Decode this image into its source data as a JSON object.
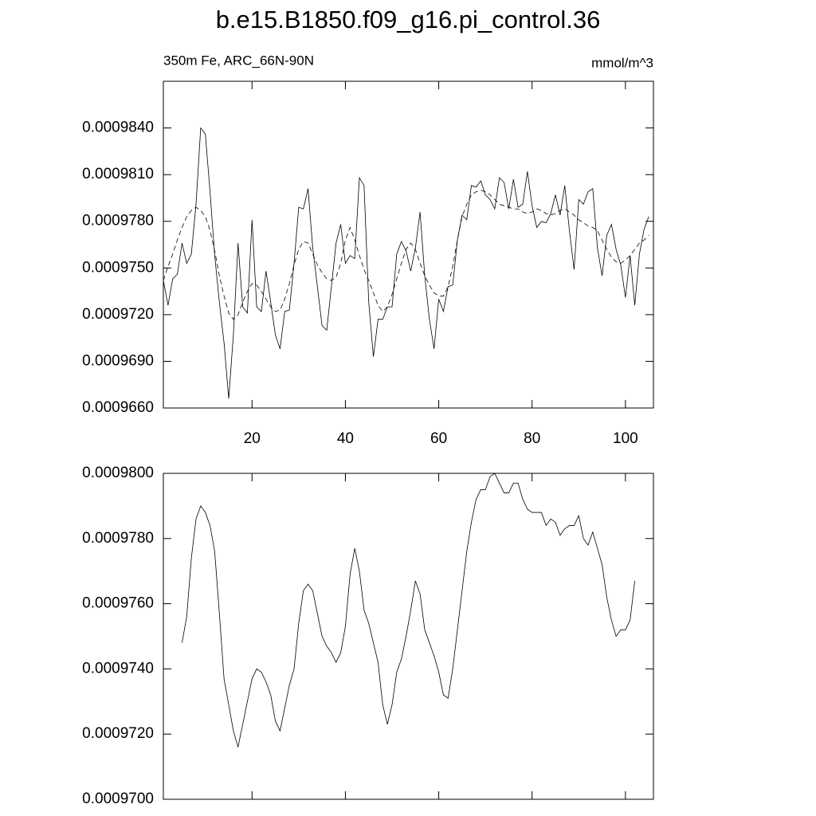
{
  "chart_data": [
    {
      "type": "line",
      "title": "b.e15.B1850.f09_g16.pi_control.36",
      "subtitle_left": "350m Fe, ARC_66N-90N",
      "subtitle_right": "mmol/m^3",
      "x": [
        1,
        2,
        3,
        4,
        5,
        6,
        7,
        8,
        9,
        10,
        11,
        12,
        13,
        14,
        15,
        16,
        17,
        18,
        19,
        20,
        21,
        22,
        23,
        24,
        25,
        26,
        27,
        28,
        29,
        30,
        31,
        32,
        33,
        34,
        35,
        36,
        37,
        38,
        39,
        40,
        41,
        42,
        43,
        44,
        45,
        46,
        47,
        48,
        49,
        50,
        51,
        52,
        53,
        54,
        55,
        56,
        57,
        58,
        59,
        60,
        61,
        62,
        63,
        64,
        65,
        66,
        67,
        68,
        69,
        70,
        71,
        72,
        73,
        74,
        75,
        76,
        77,
        78,
        79,
        80,
        81,
        82,
        83,
        84,
        85,
        86,
        87,
        88,
        89,
        90,
        91,
        92,
        93,
        94,
        95,
        96,
        97,
        98,
        99,
        100,
        101,
        102,
        103,
        104,
        105
      ],
      "series": [
        {
          "color": "#000000",
          "dashed": false,
          "values": [
            0.0009742,
            0.0009726,
            0.0009743,
            0.0009746,
            0.0009766,
            0.0009753,
            0.0009759,
            0.0009791,
            0.000984,
            0.0009836,
            0.0009799,
            0.0009758,
            0.0009728,
            0.0009702,
            0.0009666,
            0.0009707,
            0.0009766,
            0.0009725,
            0.0009721,
            0.0009781,
            0.0009725,
            0.0009722,
            0.0009748,
            0.0009728,
            0.0009707,
            0.0009698,
            0.0009722,
            0.0009723,
            0.0009753,
            0.0009789,
            0.0009788,
            0.0009801,
            0.0009763,
            0.0009738,
            0.0009713,
            0.000971,
            0.0009738,
            0.0009766,
            0.0009778,
            0.0009753,
            0.0009758,
            0.0009756,
            0.0009808,
            0.0009803,
            0.0009728,
            0.0009693,
            0.0009717,
            0.0009717,
            0.0009725,
            0.0009725,
            0.0009759,
            0.0009767,
            0.0009761,
            0.0009748,
            0.0009763,
            0.0009786,
            0.0009745,
            0.0009717,
            0.0009698,
            0.000973,
            0.0009722,
            0.0009738,
            0.0009739,
            0.0009768,
            0.0009784,
            0.0009781,
            0.0009803,
            0.0009802,
            0.0009806,
            0.0009797,
            0.0009794,
            0.0009788,
            0.0009808,
            0.0009805,
            0.0009788,
            0.0009807,
            0.0009789,
            0.0009791,
            0.0009812,
            0.000979,
            0.0009776,
            0.000978,
            0.0009779,
            0.0009785,
            0.0009797,
            0.0009784,
            0.0009803,
            0.0009774,
            0.0009749,
            0.0009794,
            0.0009791,
            0.0009799,
            0.0009801,
            0.0009763,
            0.0009745,
            0.0009771,
            0.0009778,
            0.0009762,
            0.0009752,
            0.0009731,
            0.0009758,
            0.0009726,
            0.0009759,
            0.0009775,
            0.0009783
          ]
        },
        {
          "color": "#000000",
          "dashed": true,
          "values": [
            0.0009742,
            0.0009751,
            0.0009759,
            0.0009768,
            0.0009776,
            0.0009783,
            0.0009787,
            0.0009789,
            0.0009787,
            0.0009783,
            0.0009774,
            0.0009761,
            0.0009745,
            0.0009732,
            0.0009721,
            0.0009717,
            0.000972,
            0.0009728,
            0.0009735,
            0.000974,
            0.0009739,
            0.0009735,
            0.000973,
            0.0009725,
            0.0009722,
            0.0009723,
            0.000973,
            0.000974,
            0.0009752,
            0.0009762,
            0.0009767,
            0.0009766,
            0.0009759,
            0.0009752,
            0.0009747,
            0.0009743,
            0.0009742,
            0.0009744,
            0.0009753,
            0.0009768,
            0.0009776,
            0.0009768,
            0.0009758,
            0.0009749,
            0.0009742,
            0.0009734,
            0.0009726,
            0.0009722,
            0.0009725,
            0.0009733,
            0.0009743,
            0.0009753,
            0.0009762,
            0.0009766,
            0.0009762,
            0.0009753,
            0.0009745,
            0.0009739,
            0.0009734,
            0.0009732,
            0.0009732,
            0.0009738,
            0.0009751,
            0.0009768,
            0.0009783,
            0.0009791,
            0.0009797,
            0.0009799,
            0.00098,
            0.0009799,
            0.0009797,
            0.0009794,
            0.0009791,
            0.000979,
            0.0009789,
            0.0009788,
            0.0009788,
            0.0009786,
            0.0009785,
            0.0009786,
            0.0009788,
            0.0009787,
            0.0009785,
            0.0009784,
            0.0009785,
            0.0009787,
            0.0009788,
            0.0009786,
            0.0009784,
            0.0009781,
            0.0009779,
            0.0009777,
            0.0009776,
            0.0009774,
            0.0009768,
            0.0009762,
            0.0009757,
            0.0009754,
            0.0009753,
            0.0009755,
            0.0009758,
            0.0009762,
            0.0009766,
            0.0009768,
            0.0009771
          ]
        }
      ],
      "xlim": [
        1,
        106
      ],
      "xticks": [
        20,
        40,
        60,
        80,
        100
      ],
      "xtick_labels": true,
      "ylim": [
        0.000966,
        0.000987
      ],
      "yticks": [
        {
          "value": 0.000966,
          "label": "0.0009660"
        },
        {
          "value": 0.000969,
          "label": "0.0009690"
        },
        {
          "value": 0.000972,
          "label": "0.0009720"
        },
        {
          "value": 0.000975,
          "label": "0.0009750"
        },
        {
          "value": 0.000978,
          "label": "0.0009780"
        },
        {
          "value": 0.000981,
          "label": "0.0009810"
        },
        {
          "value": 0.000984,
          "label": "0.0009840"
        }
      ]
    },
    {
      "type": "line",
      "x": [
        5,
        6,
        7,
        8,
        9,
        10,
        11,
        12,
        13,
        14,
        15,
        16,
        17,
        18,
        19,
        20,
        21,
        22,
        23,
        24,
        25,
        26,
        27,
        28,
        29,
        30,
        31,
        32,
        33,
        34,
        35,
        36,
        37,
        38,
        39,
        40,
        41,
        42,
        43,
        44,
        45,
        46,
        47,
        48,
        49,
        50,
        51,
        52,
        53,
        54,
        55,
        56,
        57,
        58,
        59,
        60,
        61,
        62,
        63,
        64,
        65,
        66,
        67,
        68,
        69,
        70,
        71,
        72,
        73,
        74,
        75,
        76,
        77,
        78,
        79,
        80,
        81,
        82,
        83,
        84,
        85,
        86,
        87,
        88,
        89,
        90,
        91,
        92,
        93,
        94,
        95,
        96,
        97,
        98,
        99,
        100,
        101,
        102
      ],
      "series": [
        {
          "color": "#000000",
          "dashed": false,
          "values": [
            0.0009748,
            0.0009756,
            0.0009774,
            0.0009786,
            0.000979,
            0.0009788,
            0.0009784,
            0.0009776,
            0.0009757,
            0.0009737,
            0.0009729,
            0.0009721,
            0.0009716,
            0.0009723,
            0.000973,
            0.0009737,
            0.000974,
            0.0009739,
            0.0009736,
            0.0009732,
            0.0009724,
            0.0009721,
            0.0009728,
            0.0009735,
            0.000974,
            0.0009754,
            0.0009764,
            0.0009766,
            0.0009764,
            0.0009757,
            0.000975,
            0.0009747,
            0.0009745,
            0.0009742,
            0.0009745,
            0.0009753,
            0.0009769,
            0.0009777,
            0.000977,
            0.0009758,
            0.0009754,
            0.0009748,
            0.0009742,
            0.0009729,
            0.0009723,
            0.0009729,
            0.0009739,
            0.0009743,
            0.000975,
            0.0009758,
            0.0009767,
            0.0009763,
            0.0009752,
            0.0009748,
            0.0009744,
            0.0009739,
            0.0009732,
            0.0009731,
            0.000974,
            0.0009752,
            0.0009764,
            0.0009776,
            0.0009785,
            0.0009792,
            0.0009795,
            0.0009795,
            0.0009799,
            0.00098,
            0.0009797,
            0.0009794,
            0.0009794,
            0.0009797,
            0.0009797,
            0.0009792,
            0.0009789,
            0.0009788,
            0.0009788,
            0.0009788,
            0.0009784,
            0.0009786,
            0.0009785,
            0.0009781,
            0.0009783,
            0.0009784,
            0.0009784,
            0.0009787,
            0.000978,
            0.0009778,
            0.0009782,
            0.0009777,
            0.0009772,
            0.0009762,
            0.0009755,
            0.000975,
            0.0009752,
            0.0009752,
            0.0009755,
            0.0009767
          ]
        }
      ],
      "xlim": [
        1,
        106
      ],
      "xticks": [
        20,
        40,
        60,
        80,
        100
      ],
      "xtick_labels": false,
      "ylim": [
        0.00097,
        0.00098
      ],
      "yticks": [
        {
          "value": 0.00097,
          "label": "0.0009700"
        },
        {
          "value": 0.000972,
          "label": "0.0009720"
        },
        {
          "value": 0.000974,
          "label": "0.0009740"
        },
        {
          "value": 0.000976,
          "label": "0.0009760"
        },
        {
          "value": 0.000978,
          "label": "0.0009780"
        },
        {
          "value": 0.00098,
          "label": "0.0009800"
        }
      ]
    }
  ]
}
